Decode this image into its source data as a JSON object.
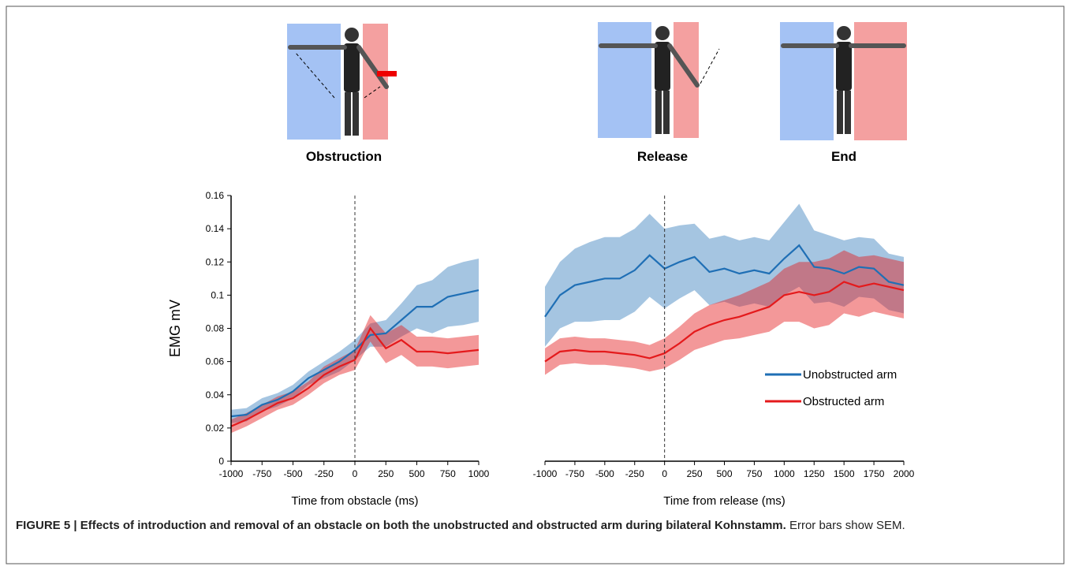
{
  "illustrations": [
    "Obstruction",
    "Release",
    "End"
  ],
  "caption": {
    "label": "FIGURE 5 | Effects of introduction and removal of an obstacle on both the unobstructed and obstructed arm during bilateral Kohnstamm.",
    "text": "Error bars show SEM."
  },
  "chart_data": [
    {
      "type": "line",
      "xlabel": "Time from obstacle (ms)",
      "ylabel": "EMG mV",
      "x": [
        -1000,
        -875,
        -750,
        -625,
        -500,
        -375,
        -250,
        -125,
        0,
        125,
        250,
        375,
        500,
        625,
        750,
        875,
        1000
      ],
      "series": [
        {
          "color": "#1f6fb5",
          "values": [
            0.027,
            0.028,
            0.034,
            0.037,
            0.042,
            0.05,
            0.055,
            0.06,
            0.067,
            0.076,
            0.077,
            0.085,
            0.093,
            0.093,
            0.099,
            0.101,
            0.103
          ],
          "errors": [
            0.004,
            0.004,
            0.004,
            0.004,
            0.004,
            0.004,
            0.005,
            0.006,
            0.006,
            0.007,
            0.008,
            0.01,
            0.013,
            0.016,
            0.018,
            0.019,
            0.019
          ]
        },
        {
          "color": "#e41a1c",
          "values": [
            0.021,
            0.025,
            0.03,
            0.035,
            0.038,
            0.044,
            0.052,
            0.057,
            0.061,
            0.08,
            0.068,
            0.073,
            0.066,
            0.066,
            0.065,
            0.066,
            0.067
          ],
          "errors": [
            0.004,
            0.004,
            0.004,
            0.004,
            0.004,
            0.004,
            0.005,
            0.005,
            0.006,
            0.008,
            0.009,
            0.009,
            0.009,
            0.009,
            0.009,
            0.009,
            0.009
          ]
        }
      ],
      "xlim": [
        -1000,
        1000
      ],
      "ylim": [
        0,
        0.16
      ],
      "xticks": [
        -1000,
        -750,
        -500,
        -250,
        0,
        250,
        500,
        750,
        1000
      ],
      "yticks": [
        0,
        0.02,
        0.04,
        0.06,
        0.08,
        0.1,
        0.12,
        0.14,
        0.16
      ],
      "vline": 0
    },
    {
      "type": "line",
      "xlabel": "Time from release (ms)",
      "x": [
        -1000,
        -875,
        -750,
        -625,
        -500,
        -375,
        -250,
        -125,
        0,
        125,
        250,
        375,
        500,
        625,
        750,
        875,
        1000,
        1125,
        1250,
        1375,
        1500,
        1625,
        1750,
        1875,
        2000
      ],
      "series": [
        {
          "name": "Unobstructed arm",
          "color": "#1f6fb5",
          "values": [
            0.087,
            0.1,
            0.106,
            0.108,
            0.11,
            0.11,
            0.115,
            0.124,
            0.116,
            0.12,
            0.123,
            0.114,
            0.116,
            0.113,
            0.115,
            0.113,
            0.122,
            0.13,
            0.117,
            0.116,
            0.113,
            0.117,
            0.116,
            0.108,
            0.106
          ],
          "errors": [
            0.018,
            0.02,
            0.022,
            0.024,
            0.025,
            0.025,
            0.025,
            0.025,
            0.024,
            0.022,
            0.02,
            0.02,
            0.02,
            0.02,
            0.02,
            0.02,
            0.022,
            0.025,
            0.022,
            0.02,
            0.02,
            0.018,
            0.018,
            0.017,
            0.017
          ]
        },
        {
          "name": "Obstructed arm",
          "color": "#e41a1c",
          "values": [
            0.06,
            0.066,
            0.067,
            0.066,
            0.066,
            0.065,
            0.064,
            0.062,
            0.065,
            0.071,
            0.078,
            0.082,
            0.085,
            0.087,
            0.09,
            0.093,
            0.1,
            0.102,
            0.1,
            0.102,
            0.108,
            0.105,
            0.107,
            0.105,
            0.103
          ],
          "errors": [
            0.008,
            0.008,
            0.008,
            0.008,
            0.008,
            0.008,
            0.008,
            0.008,
            0.009,
            0.01,
            0.011,
            0.012,
            0.012,
            0.013,
            0.014,
            0.015,
            0.016,
            0.018,
            0.02,
            0.02,
            0.019,
            0.018,
            0.017,
            0.017,
            0.017
          ]
        }
      ],
      "xlim": [
        -1000,
        2000
      ],
      "ylim": [
        0,
        0.16
      ],
      "xticks": [
        -1000,
        -750,
        -500,
        -250,
        0,
        250,
        500,
        750,
        1000,
        1250,
        1500,
        1750,
        2000
      ],
      "vline": 0,
      "legend": "lower right"
    }
  ]
}
